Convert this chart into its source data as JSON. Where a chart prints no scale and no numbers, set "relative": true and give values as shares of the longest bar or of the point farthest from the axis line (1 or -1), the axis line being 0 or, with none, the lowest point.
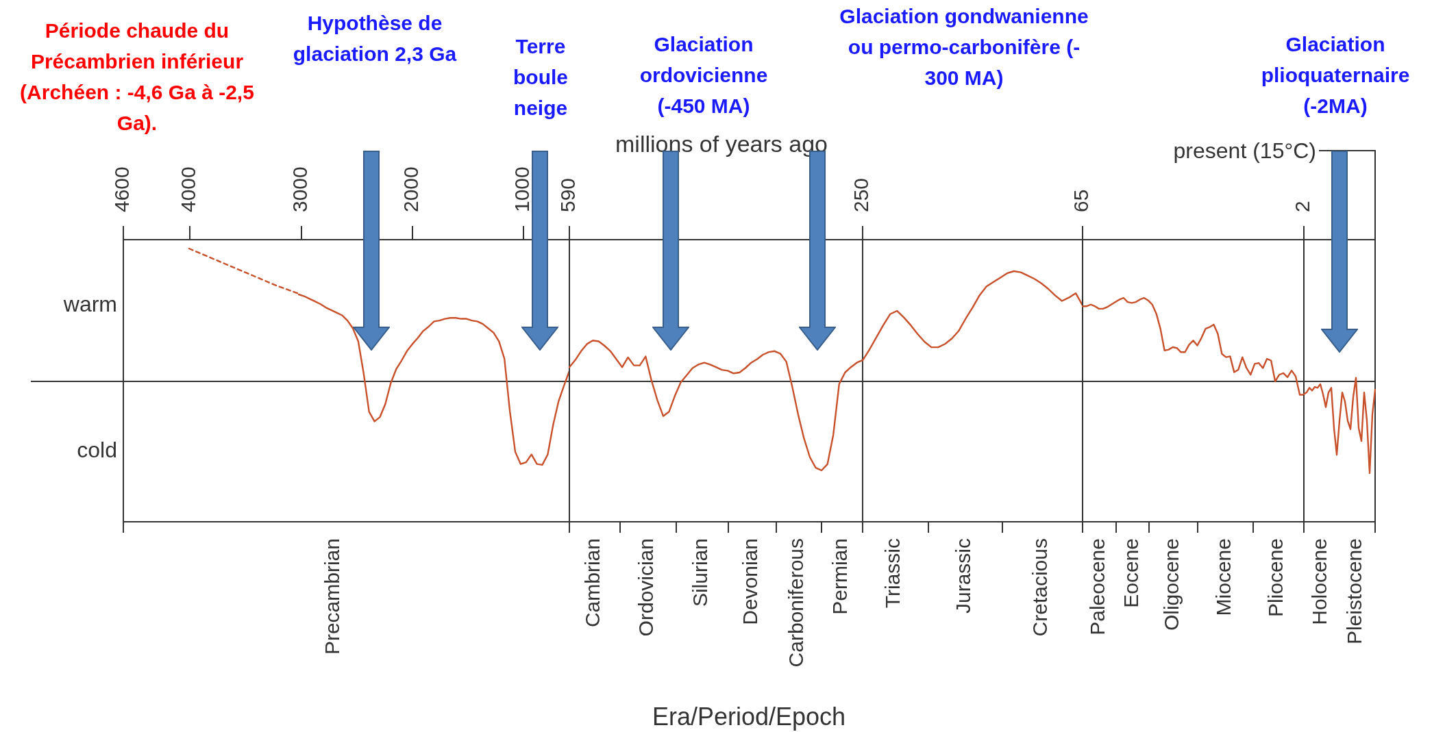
{
  "chart_data": [
    {
      "type": "line",
      "categories": [
        null,
        null,
        null,
        null,
        null,
        null,
        null,
        null,
        null
      ],
      "relative": true,
      "legend": false,
      "grid": false,
      "marker": "none",
      "series": [
        {
          "color": "#c8502a",
          "line_style": "dashed",
          "values": [
            null,
            null,
            null,
            1.0,
            0.93,
            0.86,
            0.79,
            0.72,
            0.66
          ]
        }
      ],
      "ref_lines": [
        {
          "axis": "y",
          "value": 0
        }
      ],
      "annotations": [
        "Période chaude du\nPrécambrien inférieur\n(Archéen : -4,6 Ga à -2,5\nGa).",
        "4600",
        "4000",
        "warm",
        "cold"
      ]
    },
    {
      "type": "line",
      "xlabel": "millions of years ago",
      "categories": [
        null,
        null,
        null,
        null,
        null,
        null,
        null,
        null,
        null,
        null,
        null,
        null,
        null,
        null,
        null,
        null,
        null,
        null,
        null,
        null,
        null,
        null,
        null,
        null,
        null,
        null,
        null,
        null,
        null,
        null,
        null,
        null,
        null,
        null,
        null,
        null,
        null,
        null,
        null,
        null,
        null,
        null,
        null,
        null,
        null,
        null,
        null,
        null,
        null,
        null,
        null
      ],
      "relative": true,
      "legend": false,
      "grid": false,
      "marker": "none",
      "series": [
        {
          "color": "#c8502a",
          "line_style": "solid",
          "values": [
            1,
            0.98,
            0.95,
            0.92,
            0.89,
            0.85,
            0.82,
            0.79,
            0.76,
            0.7,
            0.61,
            0.46,
            0.09,
            -0.35,
            -0.46,
            -0.41,
            -0.26,
            -0.02,
            0.14,
            0.24,
            0.35,
            0.43,
            0.5,
            0.58,
            0.63,
            0.69,
            0.7,
            0.72,
            0.73,
            0.73,
            0.72,
            0.72,
            0.7,
            0.69,
            0.66,
            0.61,
            0.56,
            0.46,
            0.26,
            -0.34,
            -0.81,
            -0.95,
            -0.93,
            -0.84,
            -0.95,
            -0.96,
            -0.84,
            -0.5,
            -0.23,
            -0.05,
            0.12
          ]
        }
      ],
      "ref_lines": [
        {
          "axis": "y",
          "value": 0
        }
      ],
      "annotations": [
        "3000",
        "2000",
        "1000",
        "590",
        "Hypothèse de\nglaciation 2,3 Ga",
        "Terre\nboule\nneige",
        "Precambrian"
      ]
    },
    {
      "type": "line",
      "categories": [
        null,
        null,
        null,
        null,
        null,
        null,
        null,
        null,
        null,
        null,
        null,
        null,
        null,
        null,
        null,
        null,
        null,
        null,
        null,
        null,
        null,
        null,
        null,
        null,
        null,
        null,
        null,
        null,
        null,
        null,
        null,
        null,
        null,
        null,
        null,
        null,
        null,
        null,
        null,
        null,
        null,
        null,
        null,
        null,
        null,
        null,
        null,
        null,
        null,
        null,
        null
      ],
      "relative": true,
      "legend": false,
      "grid": false,
      "marker": "none",
      "series": [
        {
          "color": "#c8502a",
          "line_style": "solid",
          "values": [
            0.16,
            0.24,
            0.34,
            0.42,
            0.46,
            0.45,
            0.4,
            0.34,
            0.25,
            0.16,
            0.27,
            0.18,
            0.18,
            0.28,
            0.01,
            -0.21,
            -0.39,
            -0.34,
            -0.16,
            -0.01,
            0.07,
            0.15,
            0.19,
            0.21,
            0.19,
            0.16,
            0.13,
            0.12,
            0.09,
            0.1,
            0.15,
            0.21,
            0.25,
            0.3,
            0.33,
            0.34,
            0.31,
            0.22,
            -0.06,
            -0.37,
            -0.64,
            -0.85,
            -0.97,
            -1,
            -0.93,
            -0.6,
            -0.03,
            0.1,
            0.16,
            0.21,
            0.24
          ]
        }
      ],
      "ref_lines": [
        {
          "axis": "y",
          "value": 0
        }
      ],
      "annotations": [
        "250",
        "Glaciation\nordovicienne\n(-450 MA)",
        "Era/Period/Epoch",
        "Cambrian",
        "Ordovician",
        "Silurian",
        "Devonian",
        "Carboniferous",
        "Permian"
      ]
    },
    {
      "type": "line",
      "categories": [
        null,
        null,
        null,
        null,
        null,
        null,
        null,
        null,
        null,
        null,
        null,
        null,
        null,
        null,
        null,
        null,
        null,
        null,
        null,
        null,
        null,
        null,
        null,
        null,
        null,
        null,
        null,
        null,
        null,
        null,
        null,
        null,
        null
      ],
      "relative": true,
      "legend": false,
      "grid": false,
      "marker": "none",
      "series": [
        {
          "color": "#c8502a",
          "line_style": "solid",
          "values": [
            0.19,
            0.29,
            0.4,
            0.51,
            0.61,
            0.64,
            0.58,
            0.51,
            0.43,
            0.36,
            0.31,
            0.31,
            0.34,
            0.39,
            0.46,
            0.57,
            0.67,
            0.78,
            0.86,
            0.9,
            0.94,
            0.98,
            1,
            0.99,
            0.96,
            0.93,
            0.89,
            0.84,
            0.78,
            0.73,
            0.76,
            0.8,
            0.69
          ]
        }
      ],
      "ref_lines": [
        {
          "axis": "y",
          "value": 0
        }
      ],
      "annotations": [
        "65",
        "Glaciation gondwanienne\nou permo-carbonifère (-\n300 MA)",
        "Triassic",
        "Jurassic",
        "Cretacious"
      ]
    },
    {
      "type": "line",
      "categories": [
        null,
        null,
        null,
        null,
        null,
        null,
        null,
        null,
        null,
        null,
        null,
        null,
        null,
        null,
        null,
        null,
        null,
        null,
        null,
        null,
        null,
        null,
        null,
        null,
        null,
        null,
        null,
        null,
        null,
        null,
        null,
        null,
        null,
        null,
        null,
        null,
        null,
        null,
        null,
        null,
        null,
        null,
        null,
        null,
        null,
        null,
        null,
        null,
        null,
        null,
        null,
        null,
        null,
        null,
        null
      ],
      "relative": true,
      "legend": false,
      "grid": false,
      "marker": "none",
      "series": [
        {
          "color": "#c8502a",
          "line_style": "solid",
          "values": [
            0.9,
            0.9,
            0.92,
            0.9,
            0.87,
            0.87,
            0.89,
            0.92,
            0.95,
            0.98,
            1,
            0.95,
            0.94,
            0.95,
            0.98,
            1,
            0.97,
            0.92,
            0.81,
            0.63,
            0.37,
            0.38,
            0.41,
            0.4,
            0.35,
            0.35,
            0.44,
            0.49,
            0.43,
            0.52,
            0.63,
            0.65,
            0.68,
            0.57,
            0.33,
            0.29,
            0.3,
            0.11,
            0.14,
            0.29,
            0.16,
            0.08,
            0.21,
            0.22,
            0.16,
            0.27,
            0.25,
            0,
            0.08,
            0.1,
            0.05,
            0.13,
            0.06,
            -0.16,
            -0.16
          ]
        }
      ],
      "ref_lines": [
        {
          "axis": "y",
          "value": 0
        }
      ],
      "annotations": [
        "2",
        "Paleocene",
        "Eocene",
        "Oligocene",
        "Miocene",
        "Pliocene"
      ]
    },
    {
      "type": "line",
      "categories": [
        null,
        null,
        null,
        null,
        null,
        null,
        null,
        null,
        null,
        null,
        null,
        null,
        null,
        null,
        null,
        null,
        null,
        null,
        null,
        null,
        null,
        null,
        null,
        null,
        null,
        null,
        null
      ],
      "relative": true,
      "legend": false,
      "grid": false,
      "marker": "none",
      "series": [
        {
          "color": "#c8502a",
          "line_style": "solid",
          "values": [
            -0.14,
            -0.12,
            -0.07,
            -0.1,
            -0.06,
            -0.07,
            -0.03,
            -0.14,
            -0.28,
            -0.12,
            -0.07,
            -0.51,
            -0.8,
            -0.43,
            -0.12,
            -0.22,
            -0.43,
            -0.52,
            -0.17,
            0.04,
            -0.51,
            -0.65,
            -0.12,
            -0.43,
            -1,
            -0.36,
            -0.09
          ]
        }
      ],
      "ref_lines": [
        {
          "axis": "y",
          "value": 0
        }
      ],
      "annotations": [
        "Glaciation\nplioquaternaire\n(-2MA)",
        "present (15°C)",
        "Holocene",
        "Pleistocene"
      ]
    }
  ]
}
